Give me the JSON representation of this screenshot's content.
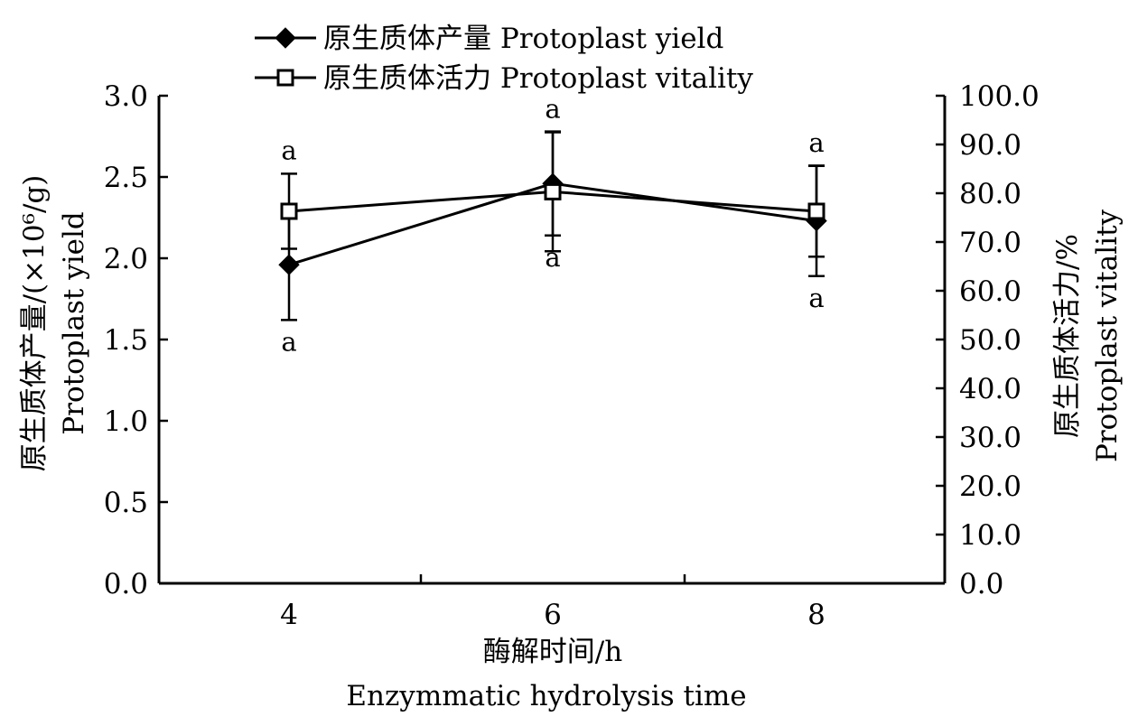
{
  "chart_data": {
    "type": "line",
    "categories": [
      "4",
      "6",
      "8"
    ],
    "xlabel_zh": "酶解时间/h",
    "xlabel_en": "Enzymmatic hydrolysis time",
    "ylabel_left_zh": "原生质体产量/(×10⁶/g)",
    "ylabel_left_en": "Protoplast yield",
    "ylabel_right_zh": "原生质体活力/%",
    "ylabel_right_en": "Protoplast vitality",
    "ylim_left": [
      0,
      3.0
    ],
    "ylim_right": [
      0,
      100.0
    ],
    "yticks_left": [
      "0.0",
      "0.5",
      "1.0",
      "1.5",
      "2.0",
      "2.5",
      "3.0"
    ],
    "yticks_right": [
      "0.0",
      "10.0",
      "20.0",
      "30.0",
      "40.0",
      "50.0",
      "60.0",
      "70.0",
      "80.0",
      "90.0",
      "100.0"
    ],
    "legend_position": "top",
    "series": [
      {
        "name": "原生质体产量 Protoplast yield",
        "axis": "left",
        "marker": "filled-diamond",
        "values": [
          1.96,
          2.46,
          2.23
        ],
        "errors": [
          0.34,
          0.32,
          0.34
        ],
        "significance": [
          "a",
          "a",
          "a"
        ]
      },
      {
        "name": "原生质体活力 Protoplast vitality",
        "axis": "right",
        "marker": "open-square",
        "values": [
          76.3,
          80.3,
          76.3
        ],
        "errors": [
          7.7,
          12.2,
          9.3
        ],
        "significance": [
          "a",
          "a",
          "a"
        ]
      }
    ],
    "colors": {
      "line": "#000000",
      "background": "#ffffff"
    }
  }
}
